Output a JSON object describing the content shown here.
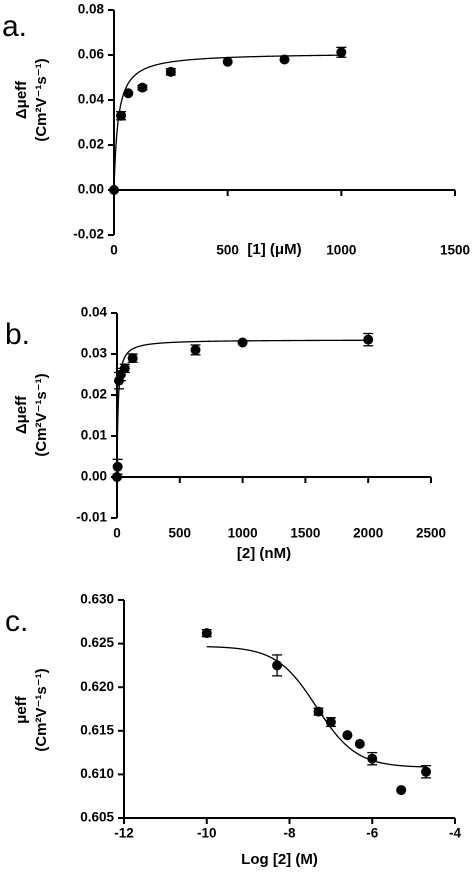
{
  "chart_data": [
    {
      "type": "scatter",
      "panel_label": "a.",
      "xlabel": "[1] (μM)",
      "ylabel": "Δμeff",
      "ylabel_units": "(Cm²V⁻¹s⁻¹)",
      "xlim": [
        0,
        1500
      ],
      "ylim": [
        -0.02,
        0.08
      ],
      "xticks": [
        0,
        500,
        1000,
        1500
      ],
      "yticks": [
        -0.02,
        0.0,
        0.02,
        0.04,
        0.06,
        0.08
      ],
      "ytick_labels": [
        "-0.02",
        "0.00",
        "0.02",
        "0.04",
        "0.06",
        "0.08"
      ],
      "xtick_labels": [
        "0",
        "500",
        "1000",
        "1500"
      ],
      "grid": false,
      "x_axis_at_zero": true,
      "series": [
        {
          "x": [
            0,
            31,
            63,
            125,
            250,
            500,
            750,
            1000
          ],
          "y": [
            0.0,
            0.033,
            0.043,
            0.0455,
            0.0525,
            0.057,
            0.058,
            0.0612
          ],
          "err": [
            0,
            0.0018,
            0,
            0.001,
            0.0014,
            0,
            0,
            0.0022
          ],
          "fit": {
            "model": "one-site binding",
            "bmax": 0.061,
            "kd": 18
          }
        }
      ]
    },
    {
      "type": "scatter",
      "panel_label": "b.",
      "xlabel": "[2] (nM)",
      "ylabel": "Δμeff",
      "ylabel_units": "(Cm²V⁻¹s⁻¹)",
      "xlim": [
        0,
        2500
      ],
      "ylim": [
        -0.01,
        0.04
      ],
      "xticks": [
        0,
        500,
        1000,
        1500,
        2000,
        2500
      ],
      "yticks": [
        -0.01,
        0.0,
        0.01,
        0.02,
        0.03,
        0.04
      ],
      "ytick_labels": [
        "-0.01",
        "0.00",
        "0.01",
        "0.02",
        "0.03",
        "0.04"
      ],
      "xtick_labels": [
        "0",
        "500",
        "1000",
        "1500",
        "2000",
        "2500"
      ],
      "grid": false,
      "x_axis_at_zero": true,
      "series": [
        {
          "x": [
            0,
            5,
            16,
            31,
            62,
            125,
            625,
            1000,
            2000
          ],
          "y": [
            0.0,
            0.0025,
            0.0235,
            0.025,
            0.0265,
            0.029,
            0.031,
            0.0328,
            0.0335
          ],
          "err": [
            0,
            0.0018,
            0.002,
            0.0015,
            0.001,
            0.001,
            0.0012,
            0,
            0.0015
          ],
          "fit": {
            "model": "one-site binding",
            "bmax": 0.0335,
            "kd": 9
          }
        }
      ]
    },
    {
      "type": "scatter",
      "panel_label": "c.",
      "xlabel": "Log [2] (M)",
      "ylabel": "μeff",
      "ylabel_units": "(Cm²V⁻¹s⁻¹)",
      "xlim": [
        -12,
        -4
      ],
      "ylim": [
        0.605,
        0.63
      ],
      "xticks": [
        -12,
        -10,
        -8,
        -6,
        -4
      ],
      "yticks": [
        0.605,
        0.61,
        0.615,
        0.62,
        0.625,
        0.63
      ],
      "ytick_labels": [
        "0.605",
        "0.610",
        "0.615",
        "0.620",
        "0.625",
        "0.630"
      ],
      "xtick_labels": [
        "-12",
        "-10",
        "-8",
        "-6",
        "-4"
      ],
      "grid": false,
      "series": [
        {
          "x": [
            -10,
            -8.3,
            -7.3,
            -7.0,
            -6.6,
            -6.3,
            -6.0,
            -5.3,
            -4.7
          ],
          "y": [
            0.6262,
            0.6225,
            0.6172,
            0.616,
            0.6145,
            0.6135,
            0.6118,
            0.6082,
            0.6103
          ],
          "err": [
            0.0004,
            0.0012,
            0.0004,
            0.0005,
            0,
            0,
            0.0007,
            0,
            0.0007
          ],
          "fit": {
            "model": "sigmoidal dose-response",
            "top": 0.6247,
            "bottom": 0.6108,
            "logec50": -7.35,
            "hill": 0.9,
            "xrange": [
              -10,
              -4.7
            ]
          }
        }
      ]
    }
  ]
}
